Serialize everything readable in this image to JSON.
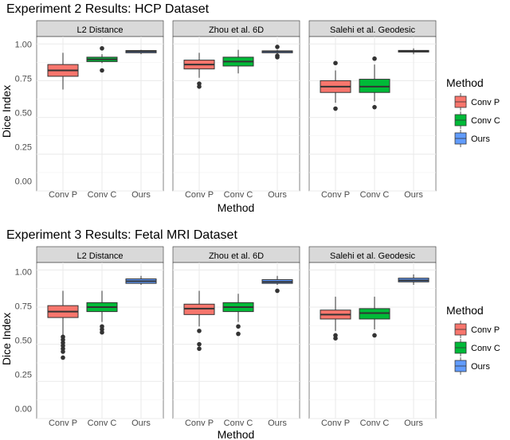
{
  "colors": {
    "conv_p": "#F8766D",
    "conv_c": "#00BA38",
    "ours": "#619CFF",
    "strip_bg": "#D9D9D9",
    "grid": "#EBEBEB",
    "text": "#000000",
    "tick_text": "#4D4D4D"
  },
  "legend": {
    "title": "Method",
    "items": [
      "Conv P",
      "Conv C",
      "Ours"
    ]
  },
  "chart_data": [
    {
      "type": "boxplot",
      "title": "Experiment 2 Results: HCP Dataset",
      "xlabel": "Method",
      "ylabel": "Dice Index",
      "ylim": [
        0,
        1.05
      ],
      "yticks": [
        "0.00",
        "0.25",
        "0.50",
        "0.75",
        "1.00"
      ],
      "categories": [
        "Conv P",
        "Conv C",
        "Ours"
      ],
      "facets": [
        {
          "title": "L2 Distance",
          "boxes": [
            {
              "method": "Conv P",
              "min": 0.69,
              "q1": 0.78,
              "median": 0.82,
              "q3": 0.86,
              "max": 0.94,
              "outliers": []
            },
            {
              "method": "Conv C",
              "min": 0.87,
              "q1": 0.88,
              "median": 0.895,
              "q3": 0.91,
              "max": 0.93,
              "outliers": [
                0.82,
                0.97
              ]
            },
            {
              "method": "Ours",
              "min": 0.93,
              "q1": 0.94,
              "median": 0.95,
              "q3": 0.955,
              "max": 0.96,
              "outliers": []
            }
          ]
        },
        {
          "title": "Zhou et al. 6D",
          "boxes": [
            {
              "method": "Conv P",
              "min": 0.77,
              "q1": 0.83,
              "median": 0.86,
              "q3": 0.89,
              "max": 0.94,
              "outliers": [
                0.71,
                0.73
              ]
            },
            {
              "method": "Conv C",
              "min": 0.8,
              "q1": 0.85,
              "median": 0.88,
              "q3": 0.91,
              "max": 0.96,
              "outliers": []
            },
            {
              "method": "Ours",
              "min": 0.93,
              "q1": 0.94,
              "median": 0.95,
              "q3": 0.953,
              "max": 0.96,
              "outliers": [
                0.91,
                0.92,
                0.98
              ]
            }
          ]
        },
        {
          "title": "Salehi et al. Geodesic",
          "boxes": [
            {
              "method": "Conv P",
              "min": 0.6,
              "q1": 0.67,
              "median": 0.71,
              "q3": 0.75,
              "max": 0.82,
              "outliers": [
                0.56,
                0.87
              ]
            },
            {
              "method": "Conv C",
              "min": 0.61,
              "q1": 0.67,
              "median": 0.71,
              "q3": 0.76,
              "max": 0.86,
              "outliers": [
                0.57,
                0.9
              ]
            },
            {
              "method": "Ours",
              "min": 0.93,
              "q1": 0.945,
              "median": 0.95,
              "q3": 0.956,
              "max": 0.97,
              "outliers": []
            }
          ]
        }
      ]
    },
    {
      "type": "boxplot",
      "title": "Experiment 3 Results: Fetal MRI Dataset",
      "xlabel": "Method",
      "ylabel": "Dice Index",
      "ylim": [
        0,
        1.05
      ],
      "yticks": [
        "0.00",
        "0.25",
        "0.50",
        "0.75",
        "1.00"
      ],
      "categories": [
        "Conv P",
        "Conv C",
        "Ours"
      ],
      "facets": [
        {
          "title": "L2 Distance",
          "boxes": [
            {
              "method": "Conv P",
              "min": 0.56,
              "q1": 0.68,
              "median": 0.72,
              "q3": 0.76,
              "max": 0.86,
              "outliers": [
                0.41,
                0.45,
                0.47,
                0.49,
                0.51,
                0.53,
                0.55
              ]
            },
            {
              "method": "Conv C",
              "min": 0.65,
              "q1": 0.72,
              "median": 0.75,
              "q3": 0.78,
              "max": 0.86,
              "outliers": [
                0.58,
                0.6,
                0.62
              ]
            },
            {
              "method": "Ours",
              "min": 0.9,
              "q1": 0.91,
              "median": 0.925,
              "q3": 0.94,
              "max": 0.96,
              "outliers": []
            }
          ]
        },
        {
          "title": "Zhou et al. 6D",
          "boxes": [
            {
              "method": "Conv P",
              "min": 0.62,
              "q1": 0.7,
              "median": 0.74,
              "q3": 0.77,
              "max": 0.86,
              "outliers": [
                0.47,
                0.5,
                0.59
              ]
            },
            {
              "method": "Conv C",
              "min": 0.65,
              "q1": 0.72,
              "median": 0.75,
              "q3": 0.78,
              "max": 0.84,
              "outliers": [
                0.57,
                0.62
              ]
            },
            {
              "method": "Ours",
              "min": 0.9,
              "q1": 0.91,
              "median": 0.92,
              "q3": 0.935,
              "max": 0.96,
              "outliers": [
                0.86
              ]
            }
          ]
        },
        {
          "title": "Salehi et al. Geodesic",
          "boxes": [
            {
              "method": "Conv P",
              "min": 0.59,
              "q1": 0.67,
              "median": 0.7,
              "q3": 0.73,
              "max": 0.82,
              "outliers": [
                0.54,
                0.56
              ]
            },
            {
              "method": "Conv C",
              "min": 0.6,
              "q1": 0.67,
              "median": 0.71,
              "q3": 0.74,
              "max": 0.82,
              "outliers": [
                0.56
              ]
            },
            {
              "method": "Ours",
              "min": 0.9,
              "q1": 0.92,
              "median": 0.93,
              "q3": 0.945,
              "max": 0.97,
              "outliers": []
            }
          ]
        }
      ]
    }
  ]
}
